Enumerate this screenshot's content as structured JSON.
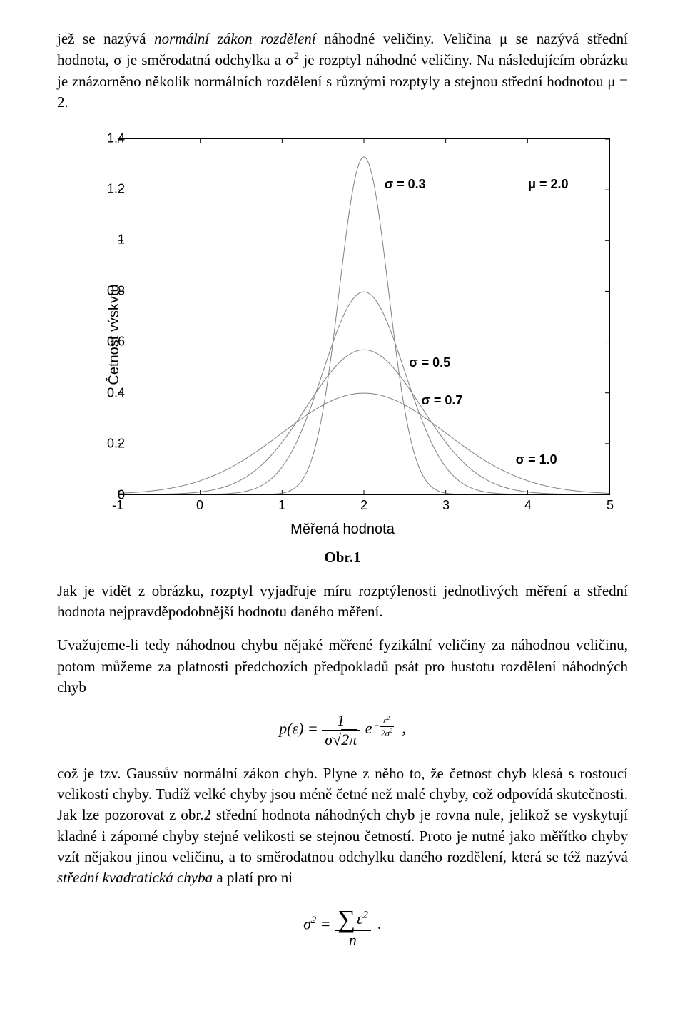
{
  "para1": {
    "t1": "jež se nazývá ",
    "i1": "normální zákon rozdělení",
    "t2": " náhodné veličiny. Veličina μ se nazývá střední hodnota, σ je směrodatná odchylka a σ",
    "sup1": "2",
    "t3": " je rozptyl náhodné veličiny. Na následujícím obrázku je znázorněno několik normálních rozdělení s různými rozptyly a stejnou střední hodnotou μ = 2."
  },
  "chart": {
    "ylabel": "Četnost výskytu",
    "xlabel": "Měřená hodnota",
    "xlim": [
      -1,
      5
    ],
    "ylim": [
      0,
      1.4
    ],
    "yticks": [
      0,
      0.2,
      0.4,
      0.6,
      0.8,
      1,
      1.2,
      1.4
    ],
    "xticks": [
      -1,
      0,
      1,
      2,
      3,
      4,
      5
    ],
    "mu": 2.0,
    "curves": [
      {
        "sigma": 0.3,
        "label": "σ  =  0.3"
      },
      {
        "sigma": 0.5,
        "label": "σ  =  0.5"
      },
      {
        "sigma": 0.7,
        "label": "σ  =  0.7"
      },
      {
        "sigma": 1.0,
        "label": "σ  =  1.0"
      }
    ],
    "annotations": {
      "mu_label": "μ  =  2.0",
      "s03": "σ  =  0.3",
      "s05": "σ  =  0.5",
      "s07": "σ  =  0.7",
      "s10": "σ  =  1.0"
    },
    "line_color": "#808080",
    "line_width": 1,
    "tick_color": "#000000",
    "caption": "Obr.1"
  },
  "para2": "Jak je vidět z obrázku, rozptyl vyjadřuje míru rozptýlenosti jednotlivých měření a střední hodnota nejpravděpodobnější hodnotu daného měření.",
  "para3": "Uvažujeme-li tedy náhodnou chybu nějaké měřené fyzikální veličiny za náhodnou veličinu, potom můžeme za platnosti předchozích předpokladů psát pro hustotu rozdělení náhodných chyb",
  "formula1": {
    "lhs": "p(ε) = ",
    "num1": "1",
    "den1_sigma": "σ",
    "den1_sqrt": "2π",
    "e": "e",
    "exp_num": "ε",
    "exp_sup": "2",
    "exp_den_2": "2σ",
    "exp_den_sup": "2",
    "comma": ","
  },
  "para4": {
    "t1": "což je tzv. Gaussův normální zákon chyb. Plyne z něho to, že četnost chyb klesá s rostoucí velikostí chyby. Tudíž velké chyby jsou méně četné než malé chyby, což odpovídá skutečnosti. Jak lze pozorovat z obr.2 střední hodnota náhodných chyb je rovna nule, jelikož se vyskytují kladné i záporné chyby stejné velikosti se stejnou četností. Proto je nutné jako měřítko chyby vzít nějakou jinou veličinu, a to směrodatnou odchylku daného rozdělení, která se též nazývá ",
    "i1": "střední kvadratická chyba",
    "t2": " a platí pro ni"
  },
  "formula2": {
    "lhs_sigma": "σ",
    "lhs_sup": "2",
    "eq": " = ",
    "num_sum": "∑",
    "num_eps": "ε",
    "num_sup": "2",
    "den": "n",
    "dot": "."
  }
}
